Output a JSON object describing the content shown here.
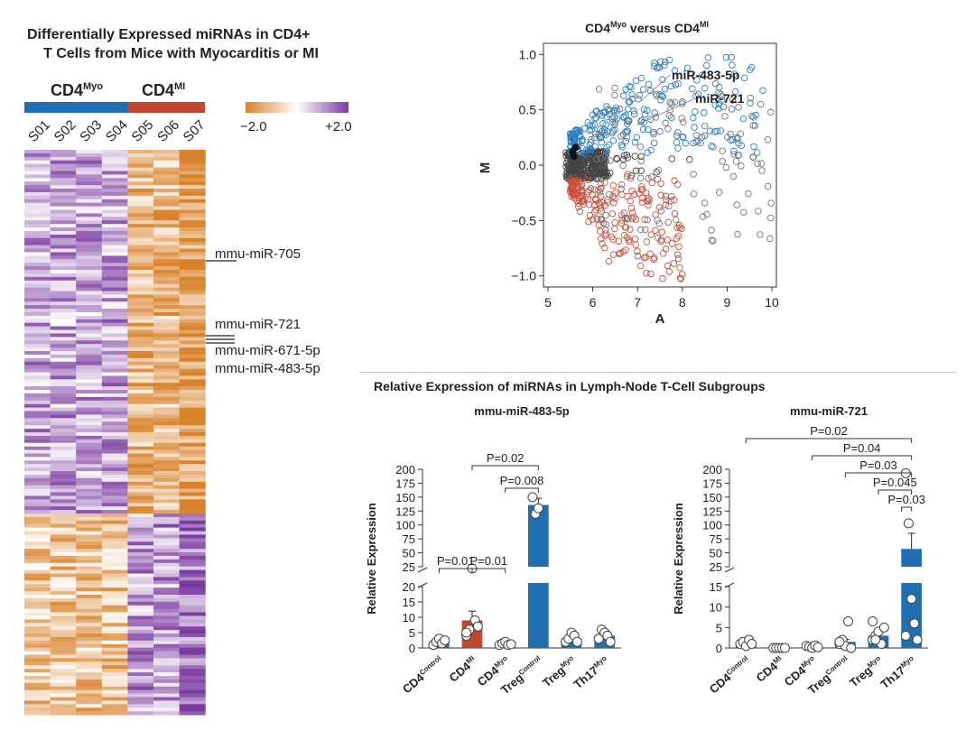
{
  "heatmap": {
    "title_line1": "Differentially Expressed miRNAs in CD4+",
    "title_line2": "T Cells from Mice with Myocarditis or MI",
    "group_myo": {
      "base": "CD4",
      "sup": "Myo",
      "color": "#1f6fb2"
    },
    "group_mi": {
      "base": "CD4",
      "sup": "MI",
      "color": "#c0482c"
    },
    "samples": [
      "S01",
      "S02",
      "S03",
      "S04",
      "S05",
      "S06",
      "S07"
    ],
    "scale_min": "−2.0",
    "scale_max": "+2.0",
    "low_color": "#d9822b",
    "high_color": "#7b3aa0",
    "annotations": [
      "mmu-miR-705",
      "mmu-miR-721",
      "mmu-miR-671-5p",
      "mmu-miR-483-5p"
    ]
  },
  "ma_plot": {
    "title_base1": "CD4",
    "title_sup1": "Myo",
    "title_mid": " versus ",
    "title_base2": "CD4",
    "title_sup2": "MI",
    "xlabel": "A",
    "ylabel": "M",
    "x_ticks": [
      "5",
      "6",
      "7",
      "8",
      "9",
      "10"
    ],
    "y_ticks": [
      "1.0",
      "0.5",
      "0.0",
      "−0.5",
      "−1.0"
    ],
    "label_483": "miR-483-5p",
    "label_721": "miR-721"
  },
  "bar_section": {
    "title": "Relative Expression of miRNAs in Lymph-Node T-Cell Subgroups"
  },
  "chart_data": [
    {
      "type": "bar",
      "title": "mmu-miR-483-5p",
      "ylabel": "Relative Expression",
      "categories": [
        "CD4 Control",
        "CD4 MI",
        "CD4 Myo",
        "Treg Control",
        "Treg Myo",
        "Th17 Myo"
      ],
      "category_base": [
        "CD4",
        "CD4",
        "CD4",
        "Treg",
        "Treg",
        "Th17"
      ],
      "category_sup": [
        "Control",
        "MI",
        "Myo",
        "Control",
        "Myo",
        "Myo"
      ],
      "values": [
        2,
        9,
        1.5,
        136,
        3,
        4
      ],
      "errors": [
        0.5,
        3,
        0.3,
        12,
        0.8,
        1
      ],
      "colors": [
        "#1f6fb2",
        "#c0482c",
        "#1f6fb2",
        "#1f6fb2",
        "#1f6fb2",
        "#1f6fb2"
      ],
      "points": [
        [
          1,
          2,
          3,
          1.5,
          2.5
        ],
        [
          4,
          6,
          22,
          9,
          7,
          5
        ],
        [
          1,
          1.5,
          2,
          1,
          1.2
        ],
        [
          150,
          120,
          130
        ],
        [
          2,
          3,
          5,
          4,
          2
        ],
        [
          3,
          6,
          5,
          4,
          2
        ]
      ],
      "y_ticks_lower": [
        0,
        5,
        10,
        15,
        20
      ],
      "y_ticks_upper": [
        25,
        50,
        75,
        100,
        125,
        150,
        175,
        200
      ],
      "p_values": [
        {
          "from": 0,
          "to": 1,
          "label": "P=0.01"
        },
        {
          "from": 1,
          "to": 2,
          "label": "P=0.01"
        },
        {
          "from": 1,
          "to": 3,
          "label": "P=0.02"
        },
        {
          "from": 2,
          "to": 3,
          "label": "P=0.008"
        }
      ]
    },
    {
      "type": "bar",
      "title": "mmu-miR-721",
      "ylabel": "Relative Expression",
      "categories": [
        "CD4 Control",
        "CD4 MI",
        "CD4 Myo",
        "Treg Control",
        "Treg Myo",
        "Th17 Myo"
      ],
      "category_base": [
        "CD4",
        "CD4",
        "CD4",
        "Treg",
        "Treg",
        "Th17"
      ],
      "category_sup": [
        "Control",
        "MI",
        "Myo",
        "Control",
        "Myo",
        "Myo"
      ],
      "values": [
        1,
        0,
        0.3,
        1.5,
        3,
        57
      ],
      "errors": [
        0.3,
        0,
        0.1,
        0.6,
        1,
        28
      ],
      "colors": [
        "#1f6fb2",
        "#c0482c",
        "#1f6fb2",
        "#1f6fb2",
        "#1f6fb2",
        "#1f6fb2"
      ],
      "points": [
        [
          1,
          1.5,
          0.5,
          2,
          1
        ],
        [
          0,
          0,
          0,
          0,
          0
        ],
        [
          0.5,
          0.3,
          0,
          0.6,
          0.2
        ],
        [
          1,
          2,
          0.5,
          6.5,
          0,
          1.5
        ],
        [
          2,
          3,
          4,
          1,
          5,
          6.5,
          2
        ],
        [
          193,
          103,
          12,
          6,
          2,
          3
        ]
      ],
      "y_ticks_lower": [
        0,
        5,
        10,
        15
      ],
      "y_ticks_upper": [
        25,
        50,
        75,
        100,
        125,
        150,
        175,
        200
      ],
      "p_values": [
        {
          "from": 0,
          "to": 5,
          "label": "P=0.02"
        },
        {
          "from": 2,
          "to": 5,
          "label": "P=0.04"
        },
        {
          "from": 3,
          "to": 5,
          "label": "P=0.03"
        },
        {
          "from": 4,
          "to": 5,
          "label": "P=0.045"
        },
        {
          "from": 4.7,
          "to": 5,
          "label": "P=0.03"
        }
      ]
    }
  ]
}
